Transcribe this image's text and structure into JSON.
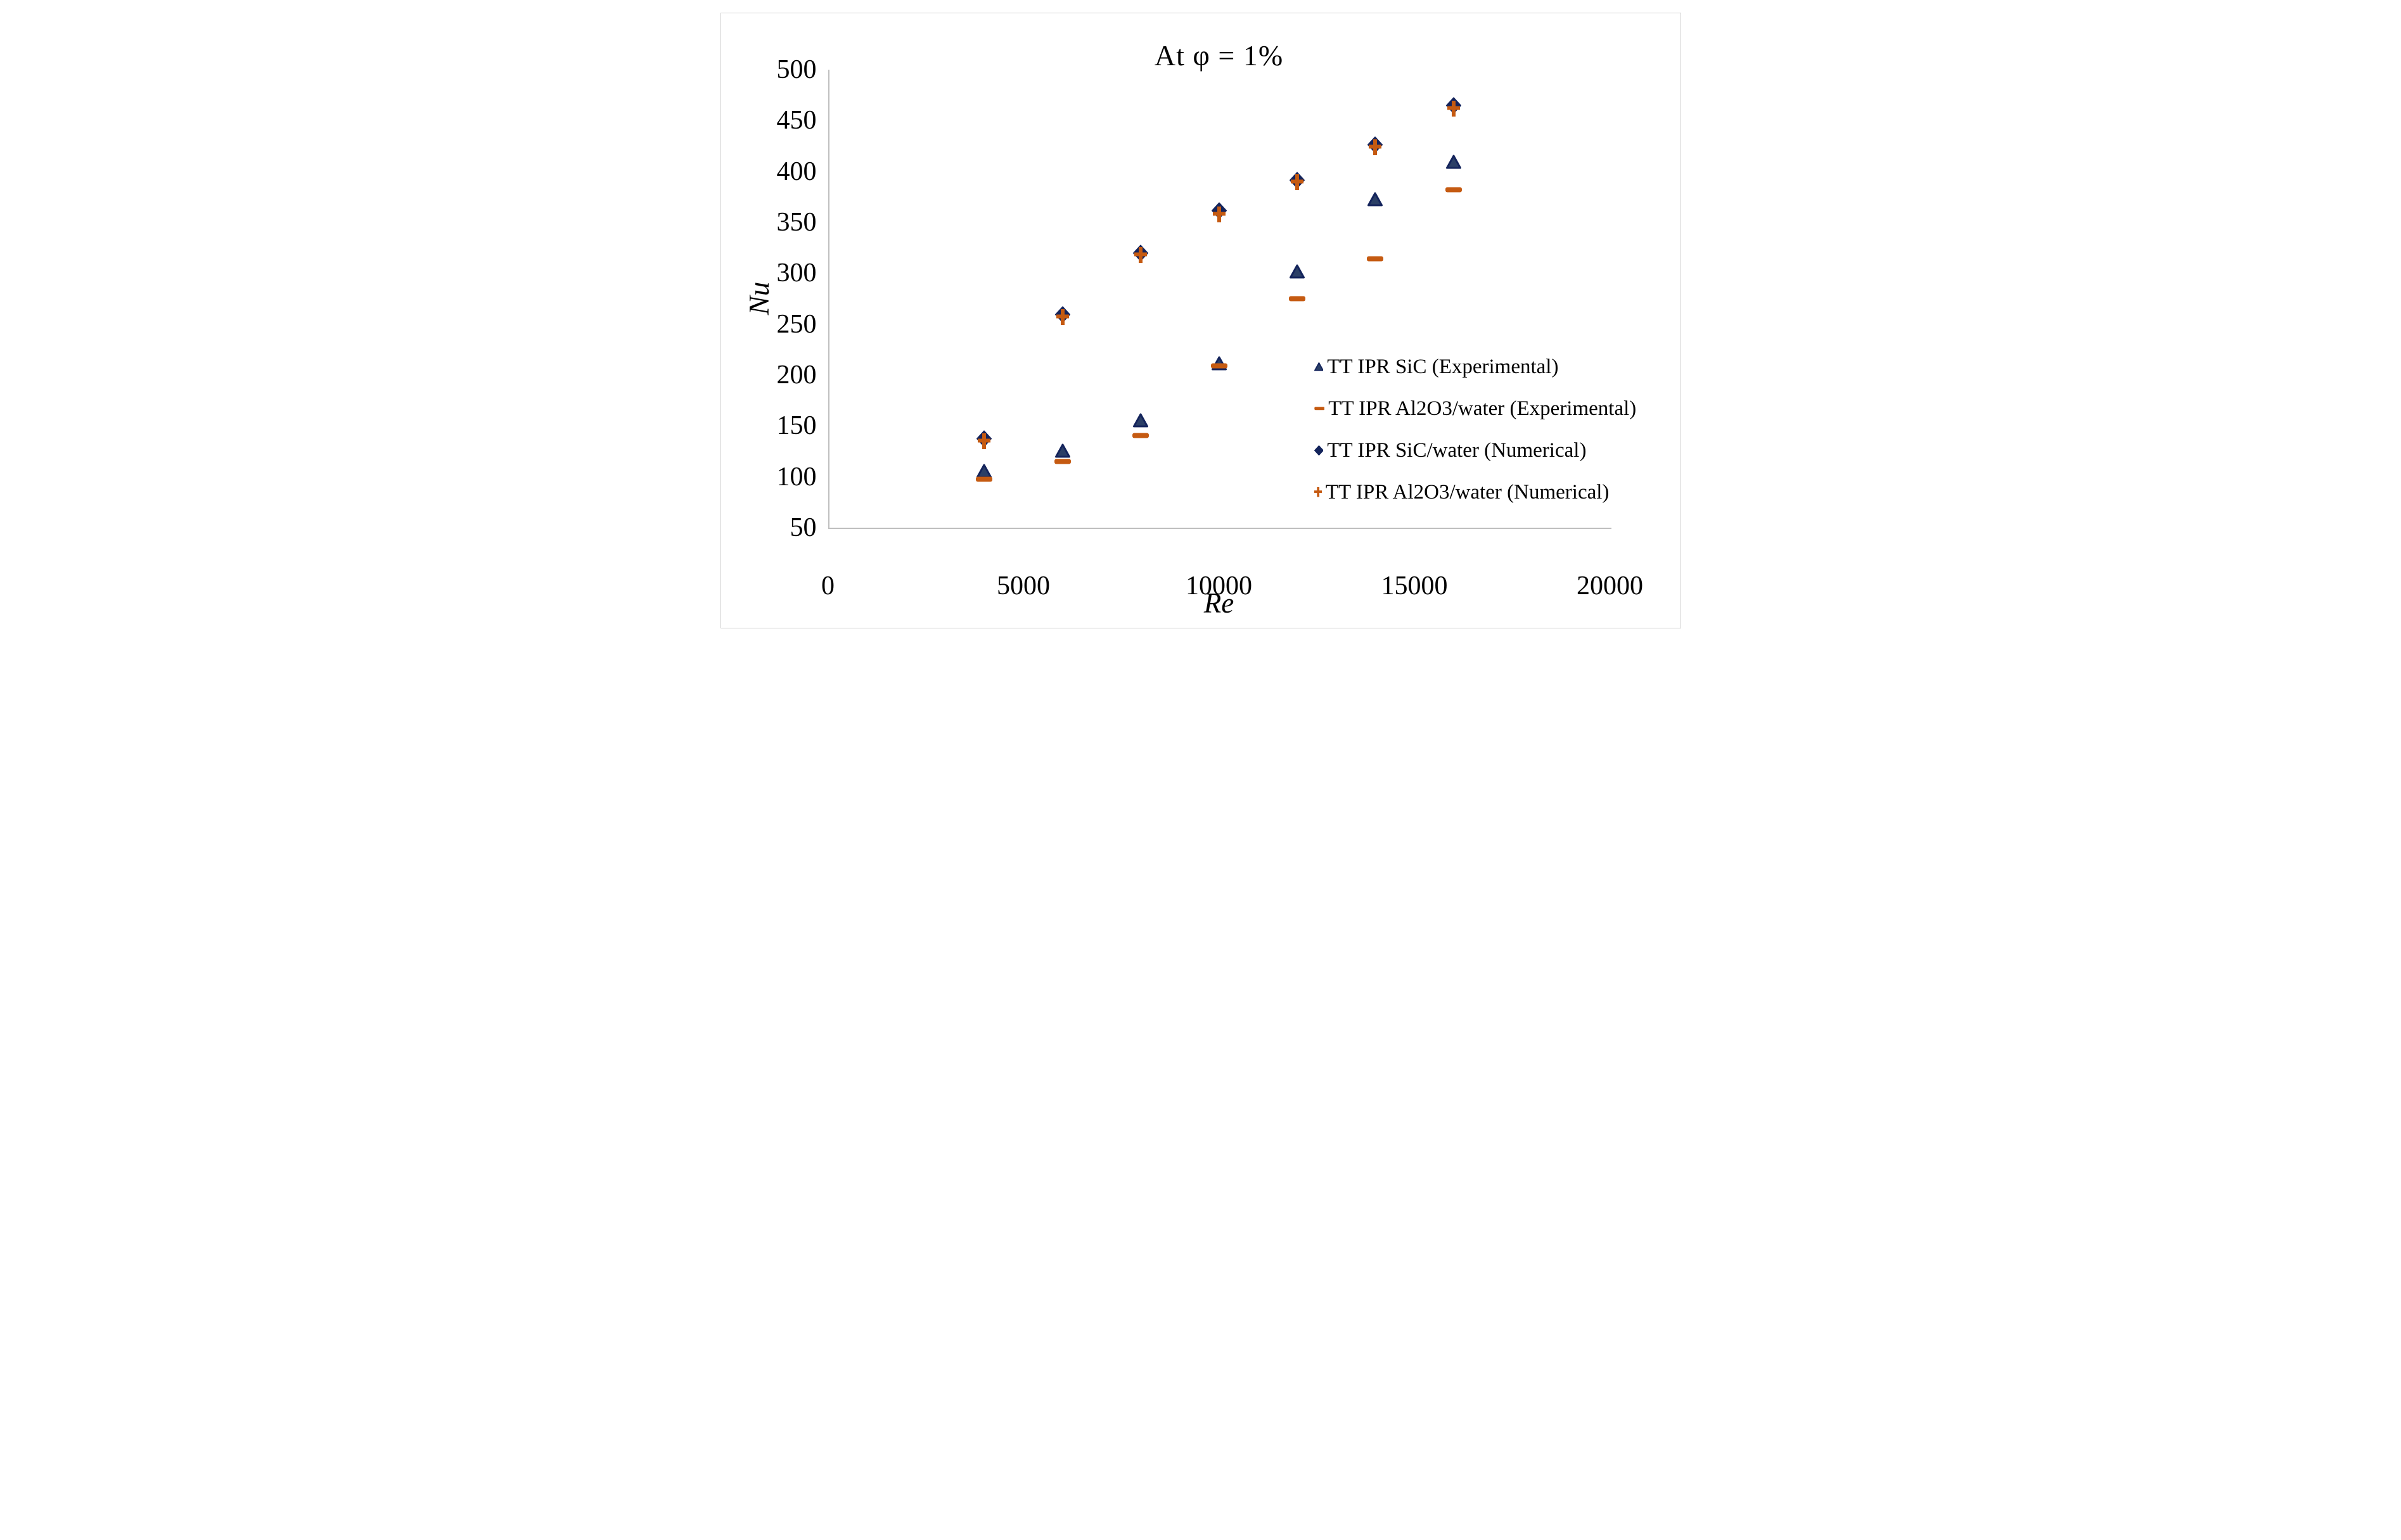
{
  "chart_data": {
    "type": "scatter",
    "title": "At φ = 1%",
    "xlabel": "Re",
    "ylabel": "Nu",
    "xlim": [
      0,
      20000
    ],
    "ylim": [
      50,
      500
    ],
    "x_ticks": [
      0,
      5000,
      10000,
      15000,
      20000
    ],
    "y_ticks": [
      50,
      100,
      150,
      200,
      250,
      300,
      350,
      400,
      450,
      500
    ],
    "grid": false,
    "legend_position": "inside-right",
    "x": [
      4000,
      6000,
      8000,
      10000,
      12000,
      14000,
      16000
    ],
    "series": [
      {
        "name": "TT IPR SiC (Experimental)",
        "marker": "triangle",
        "stroke": "#14245C",
        "fill": "#2B3F66",
        "values": [
          104,
          124,
          154,
          210,
          300,
          371,
          408
        ]
      },
      {
        "name": "TT IPR Al2O3/water (Experimental)",
        "marker": "dash",
        "stroke": "#C55A11",
        "fill": "#C55A11",
        "values": [
          97,
          115,
          140,
          209,
          275,
          314,
          382
        ]
      },
      {
        "name": "TT IPR SiC/water (Numerical)",
        "marker": "diamond",
        "stroke": "#14245C",
        "fill": "#14245C",
        "values": [
          136,
          258,
          318,
          360,
          390,
          425,
          463
        ]
      },
      {
        "name": "TT IPR Al2O3/water (Numerical)",
        "marker": "plus",
        "stroke": "#C55A11",
        "fill": "#C55A11",
        "values": [
          135,
          257,
          318,
          358,
          390,
          424,
          462
        ]
      }
    ]
  },
  "colors": {
    "navy": "#14245C",
    "navy_fill": "#2B3F66",
    "orange": "#C55A11",
    "axis": "#BFBFBF",
    "frame": "#CFCFCF",
    "text": "#000000"
  }
}
